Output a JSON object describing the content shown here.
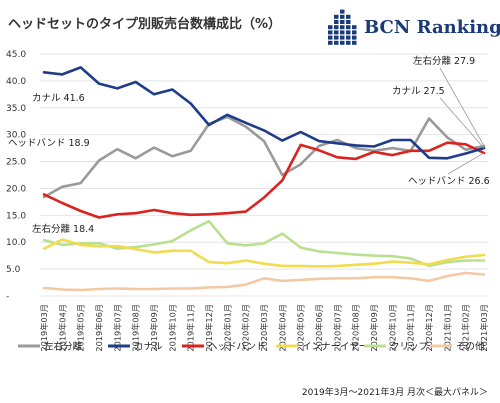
{
  "logo": {
    "text": "BCN Ranking"
  },
  "footer": {
    "text": "2019年3月～2021年3月 月次＜最大パネル＞"
  },
  "chart_data": {
    "type": "line",
    "title": "ヘッドセットのタイプ別販売台数構成比（%）",
    "xlabel": "",
    "ylabel": "",
    "ylim": [
      0,
      45
    ],
    "yticks": [
      0.0,
      5.0,
      10.0,
      15.0,
      20.0,
      25.0,
      30.0,
      35.0,
      40.0,
      45.0
    ],
    "ytick_labels": [
      "-",
      "5.0",
      "10.0",
      "15.0",
      "20.0",
      "25.0",
      "30.0",
      "35.0",
      "40.0",
      "45.0"
    ],
    "grid": true,
    "legend_position": "bottom",
    "categories": [
      "2019年03月",
      "2019年04月",
      "2019年05月",
      "2019年06月",
      "2019年07月",
      "2019年08月",
      "2019年09月",
      "2019年10月",
      "2019年11月",
      "2019年12月",
      "2020年01月",
      "2020年02月",
      "2020年03月",
      "2020年04月",
      "2020年05月",
      "2020年06月",
      "2020年07月",
      "2020年08月",
      "2020年09月",
      "2020年10月",
      "2020年11月",
      "2020年12月",
      "2021年01月",
      "2021年02月",
      "2021年03月"
    ],
    "series": [
      {
        "name": "左右分離",
        "color": "#9a9a9a",
        "values": [
          18.4,
          20.3,
          21.0,
          25.2,
          27.3,
          25.6,
          27.6,
          26.0,
          27.0,
          32.0,
          33.3,
          31.5,
          28.8,
          22.5,
          24.5,
          27.9,
          29.0,
          27.5,
          27.0,
          27.5,
          27.0,
          33.0,
          29.5,
          27.2,
          27.9
        ]
      },
      {
        "name": "カナル",
        "color": "#1f3c88",
        "values": [
          41.6,
          41.2,
          42.5,
          39.5,
          38.6,
          39.8,
          37.5,
          38.4,
          35.8,
          31.8,
          33.7,
          32.2,
          30.8,
          28.9,
          30.5,
          28.8,
          28.4,
          28.0,
          27.8,
          29.0,
          29.0,
          25.7,
          25.6,
          26.5,
          27.5
        ]
      },
      {
        "name": "ヘッドバンド",
        "color": "#d8231e",
        "values": [
          18.9,
          17.3,
          15.8,
          14.6,
          15.2,
          15.4,
          16.0,
          15.4,
          15.1,
          15.2,
          15.4,
          15.7,
          18.3,
          21.5,
          28.1,
          27.1,
          25.8,
          25.5,
          26.8,
          26.2,
          27.0,
          27.0,
          28.5,
          28.2,
          26.6
        ]
      },
      {
        "name": "インナーイヤー",
        "color": "#f0dc4e",
        "values": [
          8.8,
          10.5,
          9.5,
          9.2,
          9.3,
          8.7,
          8.1,
          8.4,
          8.4,
          6.3,
          6.1,
          6.6,
          6.0,
          5.6,
          5.6,
          5.5,
          5.6,
          5.8,
          6.0,
          6.4,
          6.2,
          5.9,
          6.7,
          7.3,
          7.6
        ]
      },
      {
        "name": "クリップ",
        "color": "#b9df90",
        "values": [
          10.4,
          9.5,
          9.8,
          9.8,
          8.8,
          9.1,
          9.6,
          10.2,
          12.2,
          13.9,
          9.8,
          9.4,
          9.8,
          11.6,
          9.0,
          8.3,
          8.0,
          7.7,
          7.5,
          7.4,
          7.0,
          5.6,
          6.3,
          6.6,
          6.6
        ]
      },
      {
        "name": "その他",
        "color": "#f3c9a4",
        "values": [
          1.5,
          1.2,
          1.1,
          1.3,
          1.4,
          1.3,
          1.3,
          1.4,
          1.4,
          1.6,
          1.7,
          2.1,
          3.3,
          2.8,
          3.0,
          3.2,
          3.3,
          3.3,
          3.5,
          3.5,
          3.3,
          2.8,
          3.7,
          4.3,
          4.0
        ]
      }
    ],
    "annotations": [
      {
        "text": "カナル 41.6"
      },
      {
        "text": "ヘッドバンド 18.9"
      },
      {
        "text": "左右分離 18.4"
      },
      {
        "text": "左右分離 27.9"
      },
      {
        "text": "カナル 27.5"
      },
      {
        "text": "ヘッドバンド 26.6"
      }
    ]
  }
}
